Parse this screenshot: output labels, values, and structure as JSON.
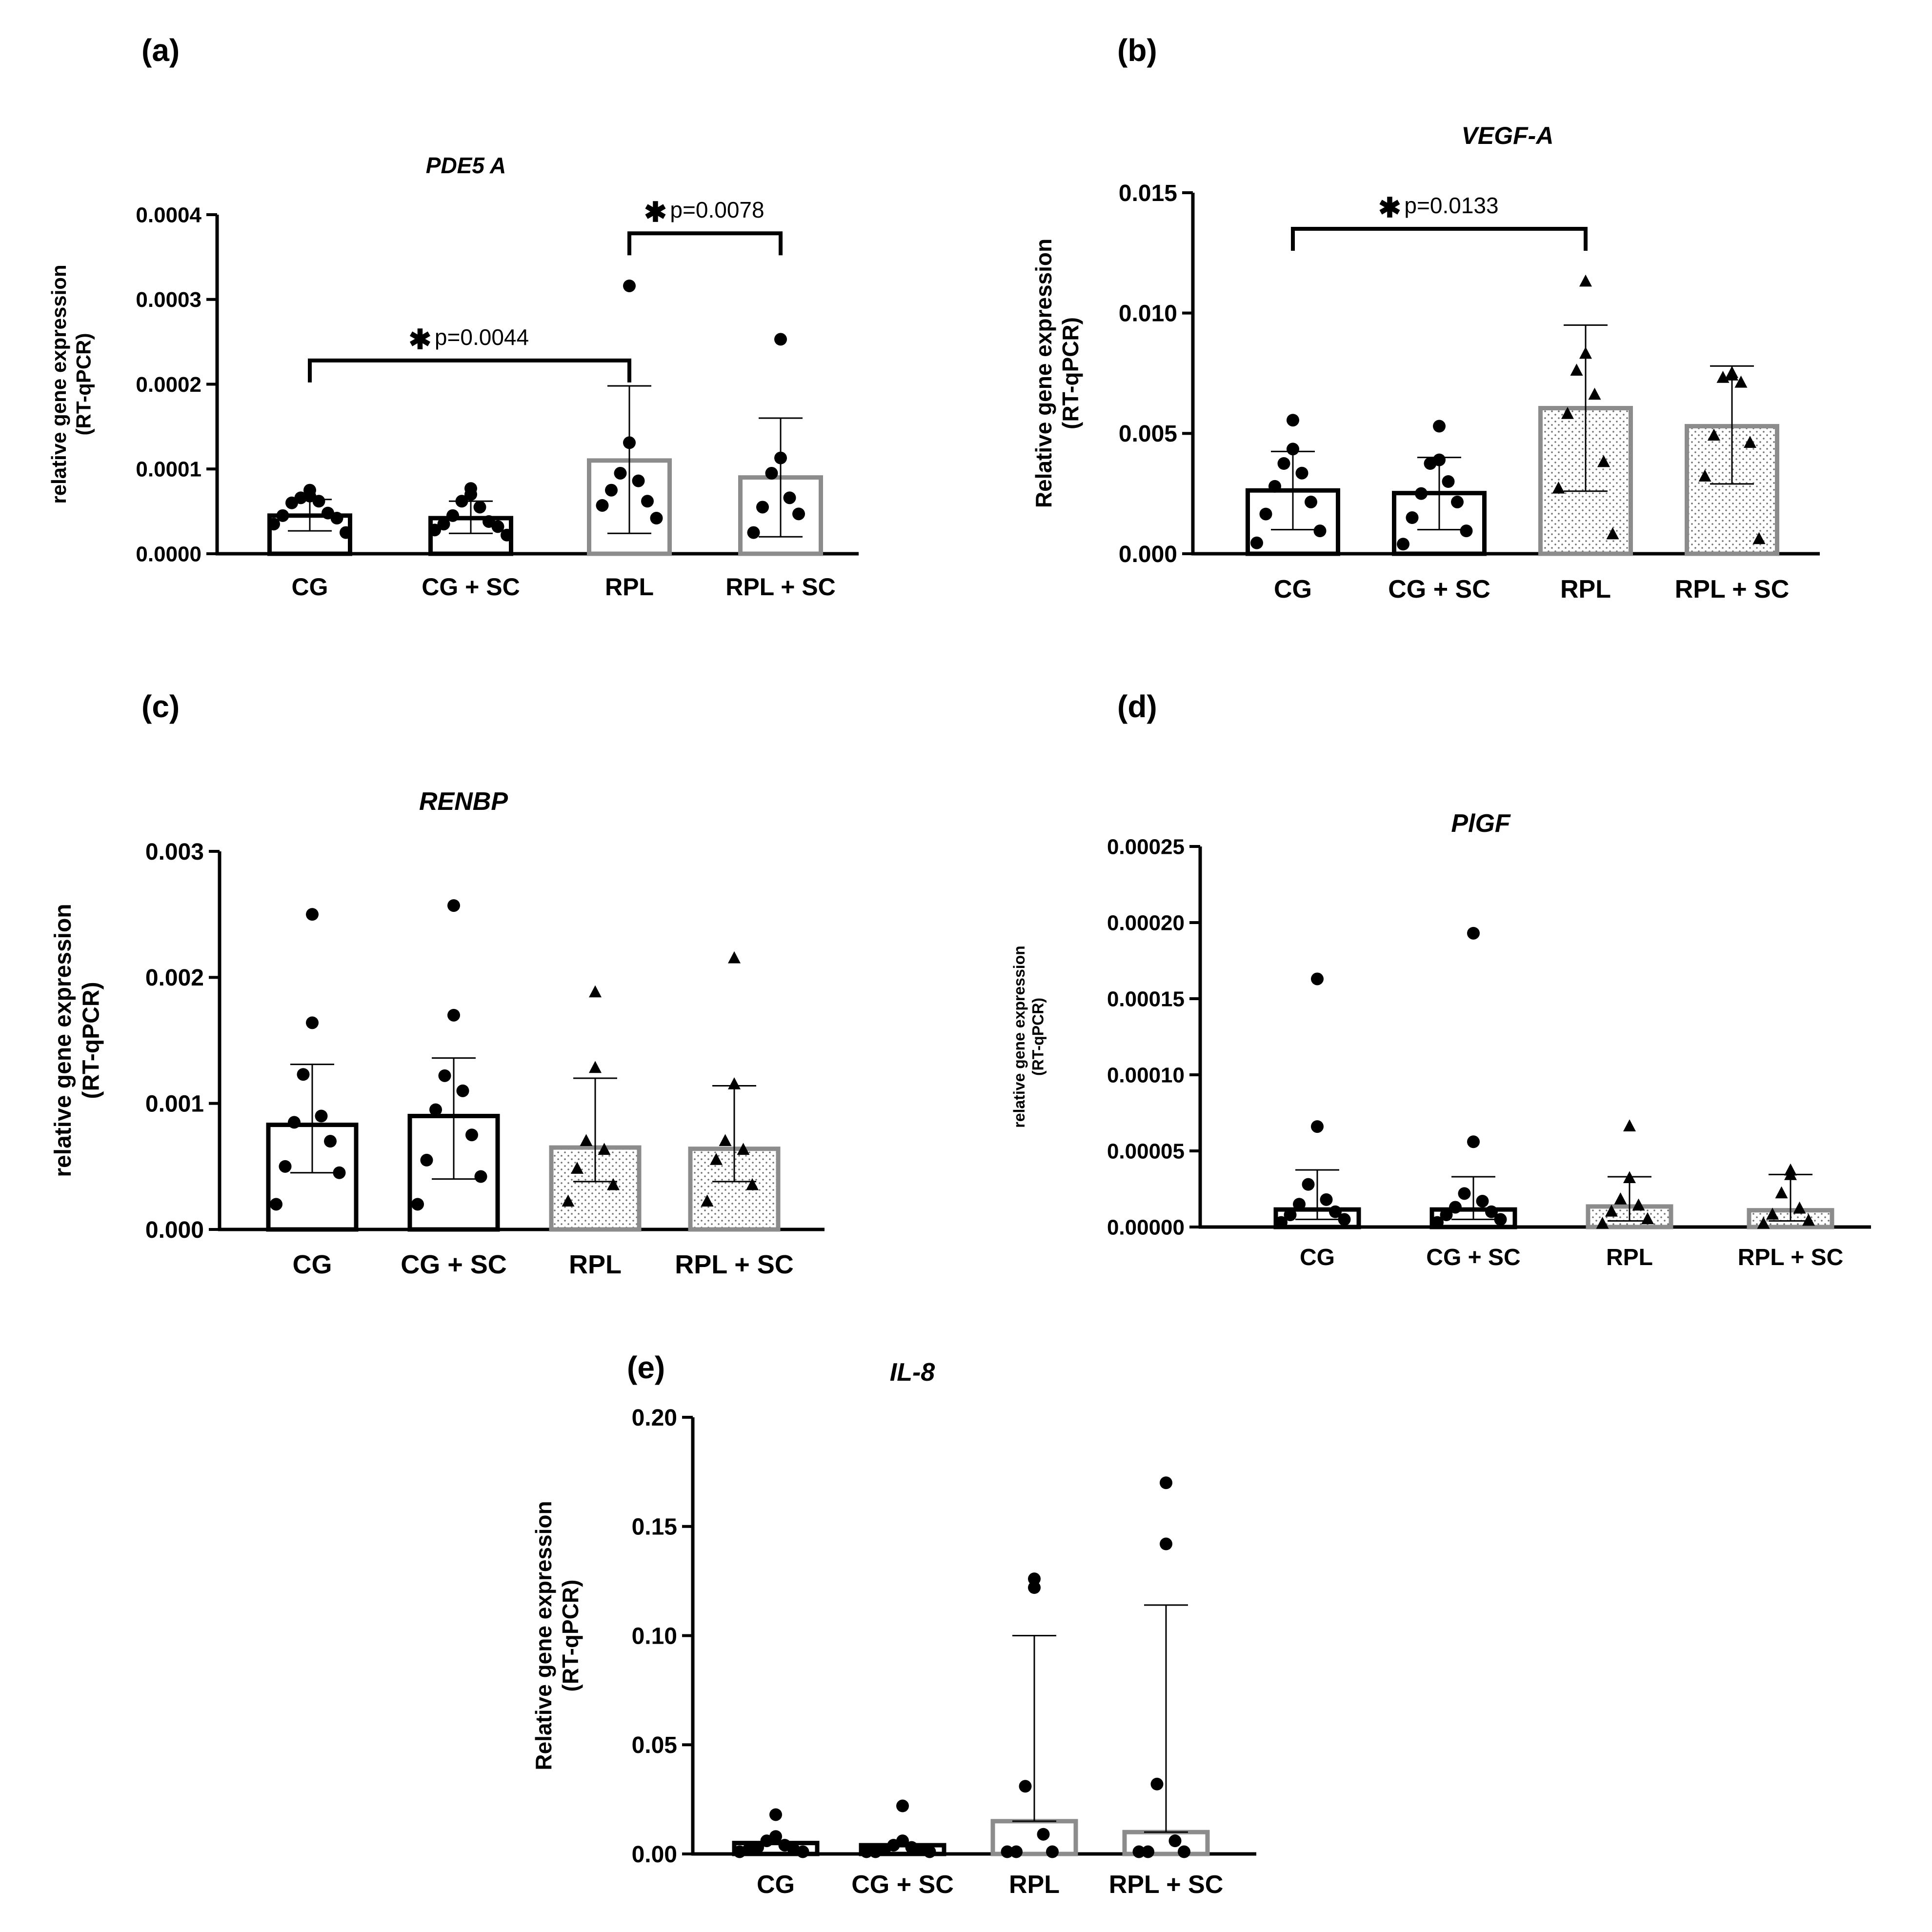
{
  "chart_data": [
    {
      "panel": "(a)",
      "type": "bar",
      "title": "PDE5 A",
      "ylabel_lines": [
        "relative gene expression",
        "(RT-qPCR)"
      ],
      "categories": [
        "CG",
        "CG + SC",
        "RPL",
        "RPL + SC"
      ],
      "yticks": [
        "0.0000",
        "0.0001",
        "0.0002",
        "0.0003",
        "0.0004"
      ],
      "ylim": [
        0,
        0.0004
      ],
      "bar_colors": [
        "#000000",
        "#000000",
        "#8c8c8c",
        "#8c8c8c"
      ],
      "bar_fill": [
        "plain",
        "plain",
        "plain",
        "plain"
      ],
      "marker": [
        "circle",
        "circle",
        "circle",
        "circle"
      ],
      "means": [
        4.5e-05,
        4.2e-05,
        0.00011,
        9e-05
      ],
      "sd_upper": [
        6.4e-05,
        6.2e-05,
        0.000198,
        0.00016
      ],
      "sd_lower": [
        2.7e-05,
        2.4e-05,
        2.4e-05,
        2e-05
      ],
      "points": [
        [
          7.5e-05,
          6.8e-05,
          6.6e-05,
          6.2e-05,
          6e-05,
          4.8e-05,
          4.5e-05,
          4.2e-05,
          3.5e-05,
          2.5e-05
        ],
        [
          7.7e-05,
          7e-05,
          6.2e-05,
          5.5e-05,
          4.5e-05,
          3.8e-05,
          3.5e-05,
          3.2e-05,
          2.8e-05,
          2.2e-05
        ],
        [
          0.000316,
          0.000131,
          9.5e-05,
          8.6e-05,
          7.5e-05,
          6.2e-05,
          5.7e-05,
          4.2e-05
        ],
        [
          0.000253,
          0.000113,
          9.5e-05,
          6.6e-05,
          5.5e-05,
          4.7e-05,
          2.5e-05
        ]
      ],
      "significance": [
        {
          "from": 0,
          "to": 2,
          "label": "p=0.0044",
          "level": 0.000228
        },
        {
          "from": 2,
          "to": 3,
          "label": "p=0.0078",
          "level": 0.000378
        }
      ]
    },
    {
      "panel": "(b)",
      "type": "bar",
      "title": "VEGF-A",
      "ylabel_lines": [
        "Relative gene expression",
        "(RT-qPCR)"
      ],
      "categories": [
        "CG",
        "CG + SC",
        "RPL",
        "RPL + SC"
      ],
      "yticks": [
        "0.000",
        "0.005",
        "0.010",
        "0.015"
      ],
      "ylim": [
        0,
        0.015
      ],
      "bar_colors": [
        "#000000",
        "#000000",
        "#8c8c8c",
        "#8c8c8c"
      ],
      "bar_fill": [
        "plain",
        "plain",
        "dotted",
        "dotted"
      ],
      "marker": [
        "circle",
        "circle",
        "triangle",
        "triangle"
      ],
      "means": [
        0.00263,
        0.00252,
        0.00605,
        0.0053
      ],
      "sd_upper": [
        0.00425,
        0.004,
        0.0095,
        0.0078
      ],
      "sd_lower": [
        0.001,
        0.001,
        0.0026,
        0.0029
      ],
      "points": [
        [
          0.00555,
          0.00435,
          0.00375,
          0.00335,
          0.0028,
          0.00215,
          0.00165,
          0.00095,
          0.00045
        ],
        [
          0.0053,
          0.0039,
          0.00375,
          0.003,
          0.0025,
          0.00215,
          0.0015,
          0.00095,
          0.0004
        ],
        [
          0.0113,
          0.0083,
          0.0076,
          0.0066,
          0.0058,
          0.0038,
          0.0027,
          0.0008
        ],
        [
          0.0075,
          0.0074,
          0.0073,
          0.0071,
          0.0049,
          0.0046,
          0.0032,
          0.0006
        ]
      ],
      "significance": [
        {
          "from": 0,
          "to": 2,
          "label": "p=0.0133",
          "level": 0.0135
        }
      ]
    },
    {
      "panel": "(c)",
      "type": "bar",
      "title": "RENBP",
      "ylabel_lines": [
        "relative gene expression",
        "(RT-qPCR)"
      ],
      "categories": [
        "CG",
        "CG + SC",
        "RPL",
        "RPL + SC"
      ],
      "yticks": [
        "0.000",
        "0.001",
        "0.002",
        "0.003"
      ],
      "ylim": [
        0,
        0.003
      ],
      "bar_colors": [
        "#000000",
        "#000000",
        "#8c8c8c",
        "#8c8c8c"
      ],
      "bar_fill": [
        "plain",
        "plain",
        "dotted",
        "dotted"
      ],
      "marker": [
        "circle",
        "circle",
        "triangle",
        "triangle"
      ],
      "means": [
        0.00083,
        0.0009,
        0.00065,
        0.00064
      ],
      "sd_upper": [
        0.00131,
        0.00136,
        0.0012,
        0.00114
      ],
      "sd_lower": [
        0.00045,
        0.0004,
        0.00038,
        0.00038
      ],
      "points": [
        [
          0.0025,
          0.00164,
          0.00123,
          0.0009,
          0.00085,
          0.0007,
          0.0005,
          0.00045,
          0.0002
        ],
        [
          0.00257,
          0.0017,
          0.00122,
          0.0011,
          0.00095,
          0.00075,
          0.00055,
          0.00042,
          0.0002
        ],
        [
          0.00188,
          0.00128,
          0.0007,
          0.00063,
          0.00048,
          0.00035,
          0.00022
        ],
        [
          0.00215,
          0.00115,
          0.0007,
          0.00063,
          0.00055,
          0.00035,
          0.00022
        ]
      ],
      "significance": []
    },
    {
      "panel": "(d)",
      "type": "bar",
      "title": "PlGF",
      "ylabel_lines": [
        "relative gene expression",
        "(RT-qPCR)"
      ],
      "categories": [
        "CG",
        "CG + SC",
        "RPL",
        "RPL + SC"
      ],
      "yticks": [
        "0.00000",
        "0.00005",
        "0.00010",
        "0.00015",
        "0.00020",
        "0.00025"
      ],
      "ylim": [
        0,
        0.00025
      ],
      "bar_colors": [
        "#000000",
        "#000000",
        "#8c8c8c",
        "#8c8c8c"
      ],
      "bar_fill": [
        "plain",
        "plain",
        "dotted",
        "dotted"
      ],
      "marker": [
        "circle",
        "circle",
        "triangle",
        "triangle"
      ],
      "means": [
        1.15e-05,
        1.15e-05,
        1.35e-05,
        1.1e-05
      ],
      "sd_upper": [
        3.75e-05,
        3.3e-05,
        3.3e-05,
        3.45e-05
      ],
      "sd_lower": [
        5e-06,
        5e-06,
        4e-06,
        4e-06
      ],
      "points": [
        [
          0.000163,
          6.6e-05,
          2.8e-05,
          1.8e-05,
          1.5e-05,
          1e-05,
          8e-06,
          5e-06,
          3e-06
        ],
        [
          0.000193,
          5.6e-05,
          2.2e-05,
          1.7e-05,
          1.3e-05,
          1e-05,
          8e-06,
          5e-06,
          3e-06
        ],
        [
          6.6e-05,
          3.2e-05,
          1.8e-05,
          1.4e-05,
          1e-05,
          5e-06,
          2e-06
        ],
        [
          3.7e-05,
          3.4e-05,
          2.2e-05,
          1.2e-05,
          8e-06,
          4e-06,
          2e-06
        ]
      ],
      "significance": []
    },
    {
      "panel": "(e)",
      "type": "bar",
      "title": "IL-8",
      "ylabel_lines": [
        "Relative gene expression",
        "(RT-qPCR)"
      ],
      "categories": [
        "CG",
        "CG + SC",
        "RPL",
        "RPL + SC"
      ],
      "yticks": [
        "0.00",
        "0.05",
        "0.10",
        "0.15",
        "0.20"
      ],
      "ylim": [
        0,
        0.2
      ],
      "bar_colors": [
        "#000000",
        "#000000",
        "#8c8c8c",
        "#8c8c8c"
      ],
      "bar_fill": [
        "plain",
        "plain",
        "plain",
        "plain"
      ],
      "marker": [
        "circle",
        "circle",
        "circle",
        "circle"
      ],
      "means": [
        0.005,
        0.004,
        0.015,
        0.01
      ],
      "sd_upper": [
        0.005,
        0.004,
        0.1,
        0.114
      ],
      "sd_lower": [
        0.005,
        0.004,
        0.015,
        0.01
      ],
      "points": [
        [
          0.018,
          0.008,
          0.006,
          0.004,
          0.003,
          0.002,
          0.002,
          0.001,
          0.001
        ],
        [
          0.022,
          0.006,
          0.004,
          0.003,
          0.002,
          0.002,
          0.001,
          0.001,
          0.001
        ],
        [
          0.126,
          0.122,
          0.031,
          0.009,
          0.001,
          0.001,
          0.001
        ],
        [
          0.17,
          0.142,
          0.032,
          0.006,
          0.001,
          0.001,
          0.001
        ]
      ],
      "significance": []
    }
  ]
}
